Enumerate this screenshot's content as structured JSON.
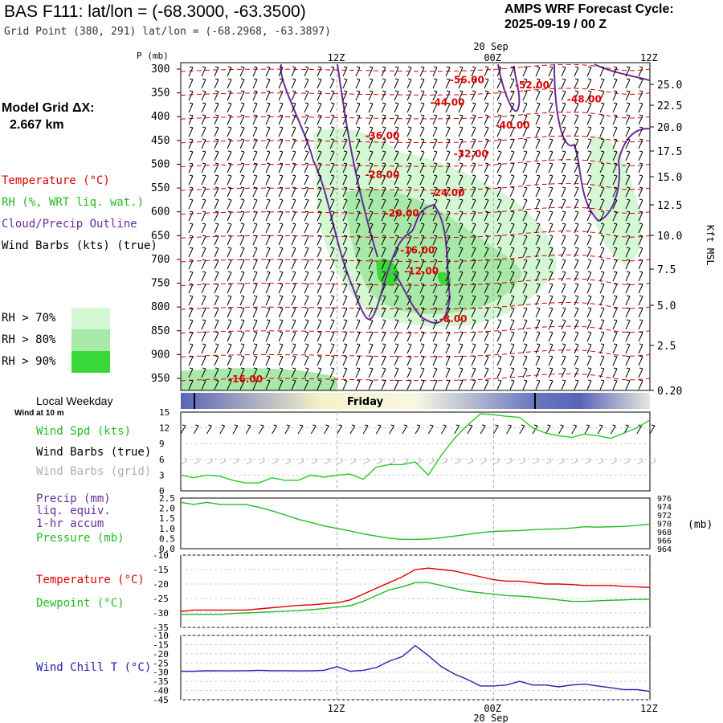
{
  "header": {
    "title": "BAS F111:  lat/lon = (-68.3000, -63.3500)",
    "subtitle": "Grid Point (380, 291) lat/lon = (-68.2968, -63.3897)",
    "forecast_title": "AMPS WRF Forecast Cycle:",
    "forecast_cycle": "2025-09-19 / 00  Z"
  },
  "side": {
    "model_grid_label": "Model Grid ΔX:",
    "model_grid_value": "2.667 km",
    "temperature_label": "Temperature (°C)",
    "rh_label": "RH (%, WRT liq. wat.)",
    "cloud_label": "Cloud/Precip Outline",
    "wind_label": "Wind Barbs (kts) (true)",
    "rh_legend": [
      {
        "label": "RH > 70%",
        "color": "#d4f7d4"
      },
      {
        "label": "RH > 80%",
        "color": "#a8e8a8"
      },
      {
        "label": "RH > 90%",
        "color": "#38d838"
      }
    ],
    "local_weekday": "Local Weekday",
    "wind_10m": "Wind at 10 m",
    "weekday_name": "Friday"
  },
  "colors": {
    "temperature": "#e00000",
    "rh": "#22bb22",
    "cloud": "#6a2c9a",
    "pressure": "#22bb22",
    "precip": "#6a2c9a",
    "wind_speed": "#22cc22",
    "wind_chill": "#2020b0",
    "grid_barbs": "#b0b0b0"
  },
  "time_axis": {
    "ticks": [
      "12Z",
      "00Z",
      "12Z"
    ],
    "date_label": "20 Sep",
    "hours": [
      0,
      12,
      24,
      36
    ]
  },
  "chart_data": [
    {
      "type": "contour",
      "name": "cross-section",
      "ylabel": "P (mb)",
      "y_ticks": [
        "300",
        "350",
        "400",
        "450",
        "500",
        "550",
        "600",
        "650",
        "700",
        "750",
        "800",
        "850",
        "900",
        "950"
      ],
      "right_axis_label": "Kft MSL",
      "right_ticks": [
        "25.0",
        "22.5",
        "20.0",
        "17.5",
        "15.0",
        "12.5",
        "10.0",
        "7.5",
        "5.0",
        "2.5",
        "0.20"
      ],
      "temperature_contours": [
        {
          "label": "-56.00",
          "value": -56,
          "hour": 22,
          "p": 323
        },
        {
          "label": "-52.00",
          "value": -52,
          "hour": 27,
          "p": 334
        },
        {
          "label": "-48.00",
          "value": -48,
          "hour": 31,
          "p": 363
        },
        {
          "label": "-44.00",
          "value": -44,
          "hour": 20.5,
          "p": 370
        },
        {
          "label": "-40.00",
          "value": -40,
          "hour": 25.5,
          "p": 418
        },
        {
          "label": "-36.00",
          "value": -36,
          "hour": 15.5,
          "p": 440
        },
        {
          "label": "-32.00",
          "value": -32,
          "hour": 22.3,
          "p": 478
        },
        {
          "label": "-28.00",
          "value": -28,
          "hour": 15.5,
          "p": 522
        },
        {
          "label": "-24.00",
          "value": -24,
          "hour": 20.5,
          "p": 560
        },
        {
          "label": "-20.00",
          "value": -20,
          "hour": 17,
          "p": 603
        },
        {
          "label": "-16.00",
          "value": -16,
          "hour": 18.2,
          "p": 681
        },
        {
          "label": "-12.00",
          "value": -12,
          "hour": 18.5,
          "p": 725
        },
        {
          "label": "-8.00",
          "value": -8,
          "hour": 21.2,
          "p": 825
        },
        {
          "label": "-16.00",
          "value": -16,
          "hour": 5,
          "p": 952
        }
      ]
    },
    {
      "type": "line",
      "name": "wind-speed",
      "ylabel": "Wind Spd (kts)",
      "barbs_true_label": "Wind Barbs (true)",
      "barbs_grid_label": "Wind Barbs (grid)",
      "ylim": [
        0,
        15
      ],
      "y_ticks": [
        "15",
        "12",
        "9",
        "6",
        "3",
        "0"
      ],
      "x": [
        0,
        1,
        2,
        3,
        4,
        5,
        6,
        7,
        8,
        9,
        10,
        11,
        12,
        13,
        14,
        15,
        16,
        17,
        18,
        19,
        20,
        21,
        22,
        23,
        24,
        25,
        26,
        27,
        28,
        29,
        30,
        31,
        32,
        33,
        34,
        35,
        36
      ],
      "values": [
        3,
        2.5,
        3,
        2.8,
        2,
        1.5,
        1.5,
        2.5,
        2,
        2,
        3,
        2.6,
        3,
        3.2,
        2.2,
        4.5,
        5,
        5,
        5.5,
        3,
        6.8,
        10,
        12.5,
        14.7,
        14.5,
        14.2,
        14,
        12,
        11,
        10.5,
        10.2,
        10.8,
        10.5,
        10,
        11,
        12,
        13.5
      ]
    },
    {
      "type": "line",
      "name": "precip-pressure",
      "precip_label": "Precip (mm)",
      "precip_sub1": "liq. equiv.",
      "precip_sub2": "1-hr accum",
      "pressure_label": "Pressure (mb)",
      "right_unit": "(mb)",
      "left_ticks": [
        "2.5",
        "2.0",
        "1.5",
        "1.0",
        "0.5",
        "0.0"
      ],
      "right_ticks": [
        "976",
        "974",
        "972",
        "970",
        "968",
        "966",
        "964"
      ],
      "ylim_left": [
        0,
        2.5
      ],
      "ylim_right": [
        964,
        976
      ],
      "x": [
        0,
        1,
        2,
        3,
        4,
        5,
        6,
        7,
        8,
        9,
        10,
        11,
        12,
        13,
        14,
        15,
        16,
        17,
        18,
        19,
        20,
        21,
        22,
        23,
        24,
        25,
        26,
        27,
        28,
        29,
        30,
        31,
        32,
        33,
        34,
        35,
        36
      ],
      "pressure": [
        975,
        974.5,
        975,
        974.5,
        974.5,
        974.5,
        973.8,
        973,
        972,
        971,
        970.2,
        969.4,
        968.8,
        968.2,
        967.5,
        967,
        966.5,
        966.2,
        966.2,
        966.3,
        966.6,
        967,
        967.4,
        967.8,
        968.1,
        968.2,
        968.3,
        968.5,
        968.6,
        968.7,
        968.9,
        969.2,
        969.1,
        969.2,
        969.3,
        969.5,
        969.8
      ]
    },
    {
      "type": "line",
      "name": "temperature-dewpoint",
      "temp_label": "Temperature (°C)",
      "dew_label": "Dewpoint (°C)",
      "ylim": [
        -35,
        -10
      ],
      "y_ticks": [
        "-10",
        "-15",
        "-20",
        "-25",
        "-30",
        "-35"
      ],
      "x": [
        0,
        1,
        2,
        3,
        4,
        5,
        6,
        7,
        8,
        9,
        10,
        11,
        12,
        13,
        14,
        15,
        16,
        17,
        18,
        19,
        20,
        21,
        22,
        23,
        24,
        25,
        26,
        27,
        28,
        29,
        30,
        31,
        32,
        33,
        34,
        35,
        36
      ],
      "temperature": [
        -29.5,
        -29,
        -29,
        -29,
        -29,
        -29,
        -28.6,
        -28.2,
        -27.8,
        -27.4,
        -27.2,
        -26.8,
        -26.5,
        -25.5,
        -23.5,
        -21.5,
        -19.5,
        -17.5,
        -15,
        -14.5,
        -15,
        -15.5,
        -16.5,
        -17.5,
        -18.5,
        -19,
        -19,
        -19.5,
        -20,
        -20,
        -20.2,
        -20.5,
        -20.5,
        -20.5,
        -20.8,
        -21,
        -21.2
      ],
      "dewpoint": [
        -30.5,
        -30.5,
        -30.5,
        -30.5,
        -30.2,
        -30,
        -29.8,
        -29.6,
        -29.4,
        -29.2,
        -28.9,
        -28.5,
        -28,
        -27.5,
        -26,
        -24,
        -22,
        -21,
        -19.5,
        -19.5,
        -20.5,
        -21.5,
        -22.5,
        -23,
        -23.5,
        -24,
        -24.2,
        -24.5,
        -25,
        -25.5,
        -26,
        -26,
        -25.8,
        -25.6,
        -25.5,
        -25.3,
        -25.3
      ]
    },
    {
      "type": "line",
      "name": "wind-chill",
      "label": "Wind Chill T (°C)",
      "ylim": [
        -45,
        -10
      ],
      "y_ticks": [
        "-10",
        "-15",
        "-20",
        "-25",
        "-30",
        "-35",
        "-40",
        "-45"
      ],
      "x": [
        0,
        1,
        2,
        3,
        4,
        5,
        6,
        7,
        8,
        9,
        10,
        11,
        12,
        13,
        14,
        15,
        16,
        17,
        18,
        19,
        20,
        21,
        22,
        23,
        24,
        25,
        26,
        27,
        28,
        29,
        30,
        31,
        32,
        33,
        34,
        35,
        36
      ],
      "values": [
        -29.5,
        -29.5,
        -29.2,
        -29.3,
        -29.3,
        -29.2,
        -29,
        -29.2,
        -29.2,
        -29.3,
        -29.3,
        -29,
        -27,
        -29.5,
        -29,
        -27.5,
        -24,
        -21.5,
        -15.5,
        -21,
        -27,
        -31,
        -34,
        -37.5,
        -37.5,
        -37,
        -35,
        -37,
        -37,
        -38,
        -37,
        -36.5,
        -37.5,
        -38.5,
        -39.5,
        -39.5,
        -40.5
      ]
    }
  ]
}
